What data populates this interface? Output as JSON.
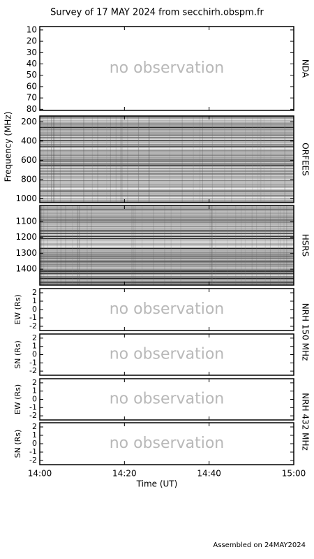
{
  "chart_data": {
    "type": "spectrogram-survey",
    "title": "Survey of 17 MAY 2024 from secchirh.obspm.fr",
    "ylabel": "Frequency (MHz)",
    "xlabel": "Time (UT)",
    "footer": "Assembled on 24MAY2024",
    "xlim": [
      0,
      60
    ],
    "xticks": [
      {
        "value": 0,
        "label": "14:00"
      },
      {
        "value": 20,
        "label": "14:20"
      },
      {
        "value": 40,
        "label": "14:40"
      },
      {
        "value": 60,
        "label": "15:00"
      }
    ],
    "panels": [
      {
        "instrument": "NDA",
        "ylim": [
          7,
          81
        ],
        "yticks": [
          10,
          20,
          30,
          40,
          50,
          60,
          70,
          80
        ],
        "annotation": "no observation"
      },
      {
        "instrument": "ORFEES",
        "ylim": [
          140,
          1040
        ],
        "yticks": [
          200,
          400,
          600,
          800,
          1000
        ]
      },
      {
        "instrument": "HSRS",
        "ylim": [
          1000,
          1500
        ],
        "yticks": [
          1100,
          1200,
          1300,
          1400
        ]
      }
    ],
    "nrh": [
      {
        "instrument": "NRH 150 MHz",
        "panels": [
          {
            "ylabel": "EW (Rs)",
            "ylim": [
              2.5,
              -2.5
            ],
            "yticks": [
              2,
              1,
              0,
              -1,
              -2
            ],
            "annotation": "no observation"
          },
          {
            "ylabel": "SN (Rs)",
            "ylim": [
              2.5,
              -2.5
            ],
            "yticks": [
              2,
              1,
              0,
              -1,
              -2
            ],
            "annotation": "no observation"
          }
        ]
      },
      {
        "instrument": "NRH 432 MHz",
        "panels": [
          {
            "ylabel": "EW (Rs)",
            "ylim": [
              2.5,
              -2.5
            ],
            "yticks": [
              2,
              1,
              0,
              -1,
              -2
            ],
            "annotation": "no observation"
          },
          {
            "ylabel": "SN (Rs)",
            "ylim": [
              2.5,
              -2.5
            ],
            "yticks": [
              2,
              1,
              0,
              -1,
              -2
            ],
            "annotation": "no observation"
          }
        ]
      }
    ]
  }
}
